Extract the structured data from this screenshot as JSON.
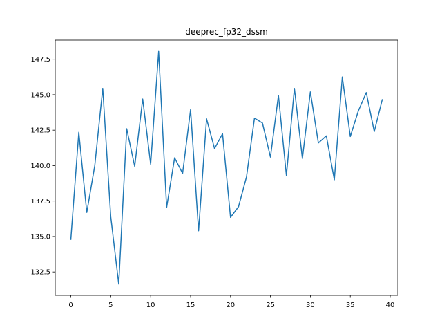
{
  "chart_data": {
    "type": "line",
    "title": "deeprec_fp32_dssm",
    "xlabel": "",
    "ylabel": "",
    "xlim": [
      -1.95,
      40.95
    ],
    "ylim": [
      130.85,
      148.85
    ],
    "grid": false,
    "x_ticks": [
      0,
      5,
      10,
      15,
      20,
      25,
      30,
      35,
      40
    ],
    "y_ticks": [
      132.5,
      135.0,
      137.5,
      140.0,
      142.5,
      145.0,
      147.5
    ],
    "x_tick_labels": [
      "0",
      "5",
      "10",
      "15",
      "20",
      "25",
      "30",
      "35",
      "40"
    ],
    "y_tick_labels": [
      "132.5",
      "135.0",
      "137.5",
      "140.0",
      "142.5",
      "145.0",
      "147.5"
    ],
    "series": [
      {
        "color": "#1f77b4",
        "x": [
          0,
          1,
          2,
          3,
          4,
          5,
          6,
          7,
          8,
          9,
          10,
          11,
          12,
          13,
          14,
          15,
          16,
          17,
          18,
          19,
          20,
          21,
          22,
          23,
          24,
          25,
          26,
          27,
          28,
          29,
          30,
          31,
          32,
          33,
          34,
          35,
          36,
          37,
          38,
          39
        ],
        "values": [
          134.8,
          142.35,
          136.7,
          140.0,
          145.45,
          136.4,
          131.65,
          142.6,
          139.95,
          144.7,
          140.1,
          148.05,
          137.05,
          140.55,
          139.45,
          143.95,
          135.4,
          143.3,
          141.2,
          142.25,
          136.35,
          137.1,
          139.2,
          143.35,
          143.0,
          140.6,
          144.95,
          139.3,
          145.45,
          140.5,
          145.2,
          141.6,
          142.1,
          139.0,
          146.25,
          142.05,
          143.85,
          145.15,
          142.4,
          144.65
        ]
      }
    ]
  }
}
